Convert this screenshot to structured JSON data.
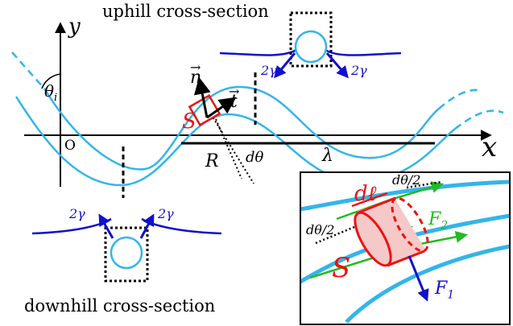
{
  "colors": {
    "light_blue": "#33b5ea",
    "dark_blue": "#1111cc",
    "red": "#ee1111",
    "green": "#22bb22",
    "black": "#000000"
  },
  "labels": {
    "uphill_title": "uphill cross-section",
    "downhill_title": "downhill cross-section",
    "y_axis": "y",
    "x_axis": "x",
    "origin": "O",
    "theta_i": "θ",
    "theta_i_sub": "i",
    "n_vec": "n",
    "t_vec": "t",
    "s_label": "S",
    "radius": "R",
    "d_theta": "dθ",
    "lambda": "λ",
    "two_gamma": "2γ",
    "d_ell": "dℓ",
    "d_theta_half": "dθ/2",
    "f1": "F",
    "f1_sub": "1",
    "f2": "F",
    "f2_sub": "2",
    "s_calligraphic": "S"
  }
}
